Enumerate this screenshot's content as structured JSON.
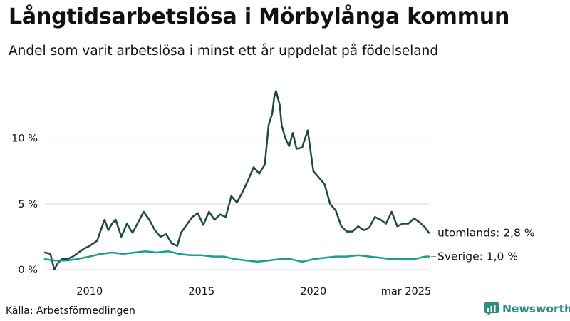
{
  "title": "Långtidsarbetslösa i Mörbylånga kommun",
  "subtitle": "Andel som varit arbetslösa i minst ett år uppdelat på födelseland",
  "source": "Källa: Arbetsförmedlingen",
  "brand": "Newsworthy",
  "colors": {
    "utomlands": "#1f4a44",
    "sverige": "#1b9e8c",
    "grid": "#d9d9d9",
    "brand": "#2e8b82"
  },
  "chart_data": {
    "type": "line",
    "x_range": [
      "2008-01",
      "2025-03"
    ],
    "ylim": [
      0,
      14
    ],
    "y_ticks": [
      {
        "value": 0,
        "label": "0 %"
      },
      {
        "value": 5,
        "label": "5 %"
      },
      {
        "value": 10,
        "label": "10 %"
      }
    ],
    "x_ticks": [
      {
        "date": "2010-01",
        "label": "2010"
      },
      {
        "date": "2015-01",
        "label": "2015"
      },
      {
        "date": "2020-01",
        "label": "2020"
      },
      {
        "date": "2025-03",
        "label": "mar 2025"
      }
    ],
    "grid": true,
    "series": [
      {
        "name": "utomlands",
        "end_label": "utomlands: 2,8 %",
        "points": [
          [
            "2008-01",
            1.3
          ],
          [
            "2008-04",
            1.2
          ],
          [
            "2008-06",
            0.0
          ],
          [
            "2008-08",
            0.5
          ],
          [
            "2008-10",
            0.8
          ],
          [
            "2009-01",
            0.8
          ],
          [
            "2009-04",
            1.0
          ],
          [
            "2009-07",
            1.3
          ],
          [
            "2009-10",
            1.6
          ],
          [
            "2010-01",
            1.8
          ],
          [
            "2010-03",
            2.0
          ],
          [
            "2010-05",
            2.2
          ],
          [
            "2010-07",
            3.0
          ],
          [
            "2010-09",
            3.8
          ],
          [
            "2010-11",
            3.0
          ],
          [
            "2011-01",
            3.5
          ],
          [
            "2011-03",
            3.8
          ],
          [
            "2011-06",
            2.5
          ],
          [
            "2011-09",
            3.5
          ],
          [
            "2011-12",
            2.8
          ],
          [
            "2012-03",
            3.6
          ],
          [
            "2012-06",
            4.4
          ],
          [
            "2012-09",
            3.8
          ],
          [
            "2012-12",
            3.0
          ],
          [
            "2013-03",
            2.5
          ],
          [
            "2013-06",
            2.7
          ],
          [
            "2013-09",
            2.0
          ],
          [
            "2013-12",
            1.8
          ],
          [
            "2014-02",
            2.8
          ],
          [
            "2014-05",
            3.4
          ],
          [
            "2014-08",
            4.0
          ],
          [
            "2014-11",
            4.3
          ],
          [
            "2015-02",
            3.4
          ],
          [
            "2015-05",
            4.4
          ],
          [
            "2015-08",
            3.8
          ],
          [
            "2015-11",
            4.2
          ],
          [
            "2016-02",
            4.0
          ],
          [
            "2016-05",
            5.6
          ],
          [
            "2016-08",
            5.1
          ],
          [
            "2016-11",
            5.9
          ],
          [
            "2017-02",
            6.8
          ],
          [
            "2017-05",
            7.8
          ],
          [
            "2017-08",
            7.3
          ],
          [
            "2017-11",
            8.0
          ],
          [
            "2018-01",
            11.0
          ],
          [
            "2018-03",
            11.9
          ],
          [
            "2018-04",
            13.1
          ],
          [
            "2018-05",
            13.6
          ],
          [
            "2018-07",
            12.5
          ],
          [
            "2018-08",
            11.0
          ],
          [
            "2018-10",
            10.0
          ],
          [
            "2018-12",
            9.4
          ],
          [
            "2019-02",
            10.4
          ],
          [
            "2019-04",
            9.2
          ],
          [
            "2019-07",
            9.3
          ],
          [
            "2019-10",
            10.6
          ],
          [
            "2020-01",
            7.5
          ],
          [
            "2020-04",
            7.0
          ],
          [
            "2020-07",
            6.5
          ],
          [
            "2020-10",
            5.0
          ],
          [
            "2021-01",
            4.5
          ],
          [
            "2021-04",
            3.3
          ],
          [
            "2021-07",
            2.9
          ],
          [
            "2021-10",
            2.9
          ],
          [
            "2022-01",
            3.3
          ],
          [
            "2022-04",
            3.0
          ],
          [
            "2022-07",
            3.2
          ],
          [
            "2022-10",
            4.0
          ],
          [
            "2023-01",
            3.8
          ],
          [
            "2023-04",
            3.5
          ],
          [
            "2023-07",
            4.4
          ],
          [
            "2023-10",
            3.3
          ],
          [
            "2024-01",
            3.5
          ],
          [
            "2024-04",
            3.5
          ],
          [
            "2024-07",
            3.9
          ],
          [
            "2024-10",
            3.6
          ],
          [
            "2025-01",
            3.2
          ],
          [
            "2025-03",
            2.8
          ]
        ]
      },
      {
        "name": "Sverige",
        "end_label": "Sverige: 1,0 %",
        "points": [
          [
            "2008-01",
            0.8
          ],
          [
            "2008-06",
            0.7
          ],
          [
            "2009-01",
            0.7
          ],
          [
            "2009-06",
            0.8
          ],
          [
            "2010-01",
            1.0
          ],
          [
            "2010-07",
            1.2
          ],
          [
            "2011-01",
            1.3
          ],
          [
            "2011-07",
            1.2
          ],
          [
            "2012-01",
            1.3
          ],
          [
            "2012-07",
            1.4
          ],
          [
            "2013-01",
            1.3
          ],
          [
            "2013-07",
            1.4
          ],
          [
            "2014-01",
            1.2
          ],
          [
            "2014-07",
            1.1
          ],
          [
            "2015-01",
            1.1
          ],
          [
            "2015-07",
            1.0
          ],
          [
            "2016-01",
            1.0
          ],
          [
            "2016-07",
            0.8
          ],
          [
            "2017-01",
            0.7
          ],
          [
            "2017-07",
            0.6
          ],
          [
            "2018-01",
            0.7
          ],
          [
            "2018-07",
            0.8
          ],
          [
            "2019-01",
            0.8
          ],
          [
            "2019-07",
            0.6
          ],
          [
            "2020-01",
            0.8
          ],
          [
            "2020-07",
            0.9
          ],
          [
            "2021-01",
            1.0
          ],
          [
            "2021-07",
            1.0
          ],
          [
            "2022-01",
            1.1
          ],
          [
            "2022-07",
            1.0
          ],
          [
            "2023-01",
            0.9
          ],
          [
            "2023-07",
            0.8
          ],
          [
            "2024-01",
            0.8
          ],
          [
            "2024-07",
            0.8
          ],
          [
            "2025-01",
            1.0
          ],
          [
            "2025-03",
            1.0
          ]
        ]
      }
    ]
  }
}
